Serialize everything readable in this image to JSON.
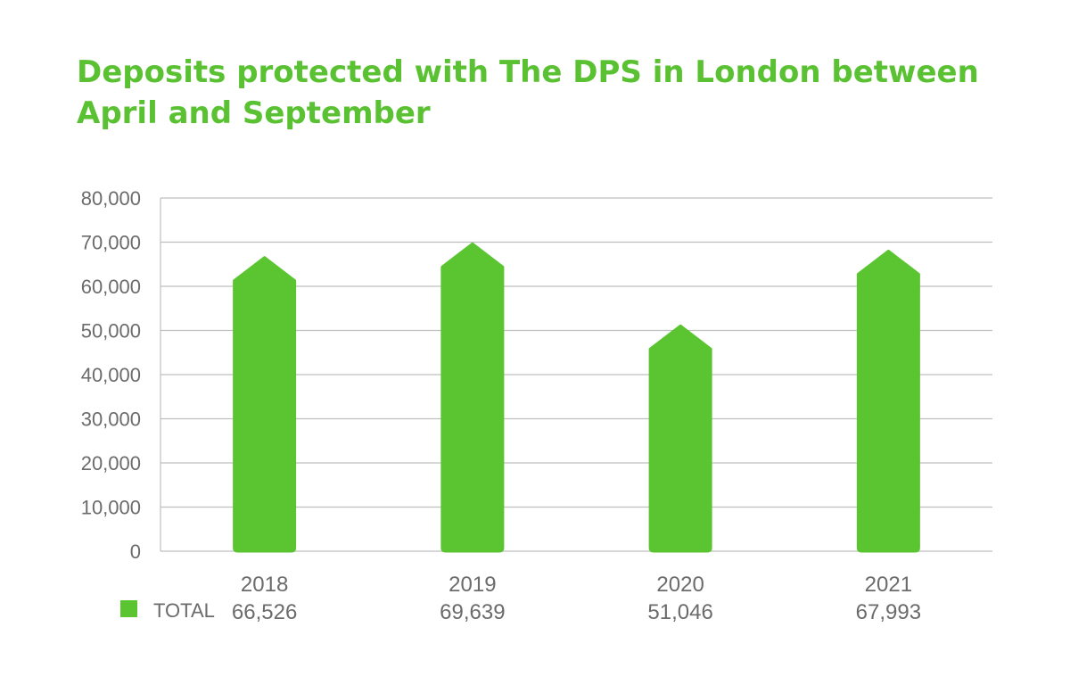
{
  "title_lines": [
    "Deposits protected with The DPS in London between",
    "April and September"
  ],
  "colors": {
    "title": "#5ac232",
    "bar": "#5ac531",
    "grid": "#bfbfbf",
    "text": "#6b6b6b"
  },
  "chart_data": {
    "type": "bar",
    "title": "Deposits protected with The DPS in London between April and September",
    "categories": [
      "2018",
      "2019",
      "2020",
      "2021"
    ],
    "value_labels": [
      "66,526",
      "69,639",
      "51,046",
      "67,993"
    ],
    "series": [
      {
        "name": "TOTAL",
        "values": [
          66526,
          69639,
          51046,
          67993
        ]
      }
    ],
    "ylim": [
      0,
      80000
    ],
    "yticks": [
      0,
      10000,
      20000,
      30000,
      40000,
      50000,
      60000,
      70000,
      80000
    ],
    "ytick_labels": [
      "0",
      "10,000",
      "20,000",
      "30,000",
      "40,000",
      "50,000",
      "60,000",
      "70,000",
      "80,000"
    ],
    "grid": true,
    "legend_position": "bottom-left"
  }
}
